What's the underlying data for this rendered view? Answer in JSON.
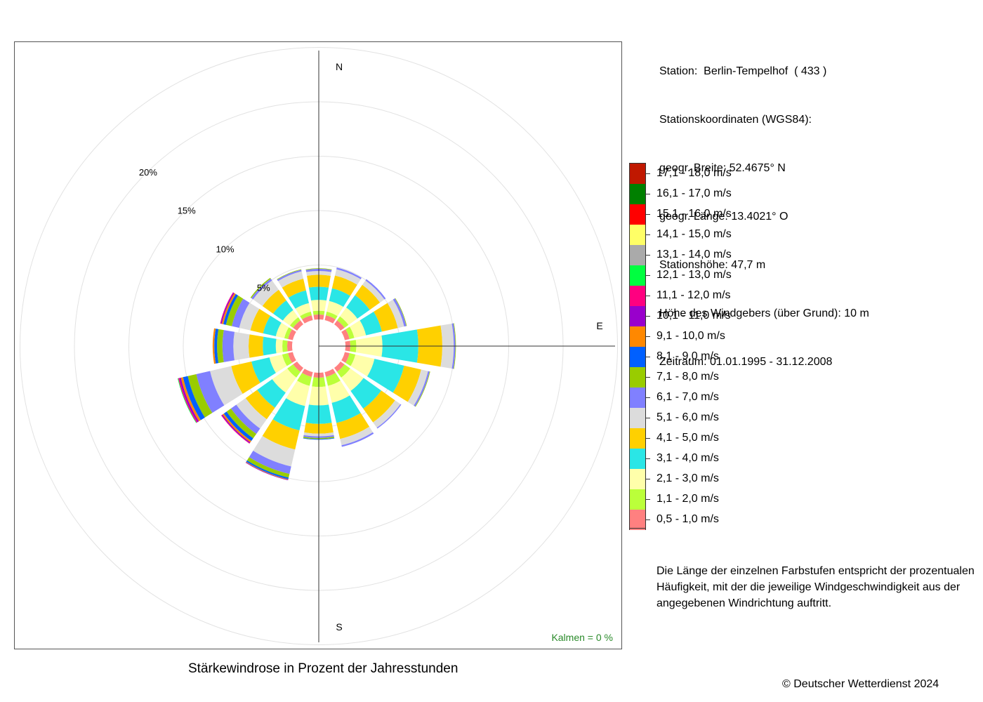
{
  "station": {
    "line1": "Station:  Berlin-Tempelhof  ( 433 )",
    "line2": "Stationskoordinaten (WGS84):",
    "line3": "geogr. Breite: 52.4675° N",
    "line4": "geogr. Länge: 13.4021° O",
    "line5": "Stationshöhe: 47,7 m",
    "line6": "Höhe des Windgebers (über Grund): 10 m",
    "line7": "Zeitraum: 01.01.1995 - 31.12.2008"
  },
  "note": {
    "line1": "Die Länge der einzelnen Farbstufen entspricht der prozentualen",
    "line2": "Häufigkeit, mit der die jeweilige Windgeschwindigkeit aus der",
    "line3": "angegebenen Windrichtung auftritt."
  },
  "caption": "Stärkewindrose in Prozent der Jahresstunden",
  "copyright": "© Deutscher Wetterdienst  2024",
  "calm": "Kalmen  =  0 %",
  "chart_data": {
    "type": "wind-rose",
    "title": "Stärkewindrose in Prozent der Jahresstunden",
    "directions": [
      "N",
      "NNE",
      "NE",
      "ENE",
      "E",
      "ESE",
      "SE",
      "SSE",
      "S",
      "SSW",
      "SW",
      "WSW",
      "W",
      "WNW",
      "NW",
      "NNW"
    ],
    "direction_labels": [
      "N",
      "E",
      "S"
    ],
    "radial_unit": "%",
    "radial_ticks": [
      5,
      10,
      15,
      20
    ],
    "radial_tick_labels": [
      "5%",
      "10%",
      "15%",
      "20%"
    ],
    "radial_max": 25,
    "calm_percent": 0,
    "speed_classes": [
      {
        "label": "0,5 - 1,0 m/s",
        "color": "#ff8080"
      },
      {
        "label": "1,1 - 2,0 m/s",
        "color": "#bbff3a"
      },
      {
        "label": "2,1 - 3,0 m/s",
        "color": "#ffffaa"
      },
      {
        "label": "3,1 - 4,0 m/s",
        "color": "#2ae6e6"
      },
      {
        "label": "4,1 - 5,0 m/s",
        "color": "#ffd000"
      },
      {
        "label": "5,1 - 6,0 m/s",
        "color": "#dcdcdc"
      },
      {
        "label": "6,1 - 7,0 m/s",
        "color": "#8080ff"
      },
      {
        "label": "7,1 - 8,0 m/s",
        "color": "#99cc00"
      },
      {
        "label": "8,1 - 9,0 m/s",
        "color": "#0060ff"
      },
      {
        "label": "9,1 - 10,0 m/s",
        "color": "#ff8800"
      },
      {
        "label": "10,1 - 11,0 m/s",
        "color": "#9900cc"
      },
      {
        "label": "11,1 - 12,0 m/s",
        "color": "#ff0080"
      },
      {
        "label": "12,1 - 13,0 m/s",
        "color": "#00ff40"
      },
      {
        "label": "13,1 - 14,0 m/s",
        "color": "#aaaaaa"
      },
      {
        "label": "14,1 - 15,0 m/s",
        "color": "#ffff66"
      },
      {
        "label": "15,1 - 16,0 m/s",
        "color": "#ff0000"
      },
      {
        "label": "16,1 - 17,0 m/s",
        "color": "#008000"
      },
      {
        "label": "17,1 - 18,0 m/s",
        "color": "#c01800"
      }
    ],
    "cumulative_percent": [
      [
        0.45,
        0.8,
        1.8,
        3.0,
        4.1,
        4.45,
        4.65,
        4.7
      ],
      [
        0.45,
        0.8,
        1.8,
        3.0,
        4.2,
        4.8,
        4.95
      ],
      [
        0.45,
        0.9,
        1.9,
        3.3,
        4.45,
        4.95,
        5.1
      ],
      [
        0.45,
        0.9,
        2.0,
        3.5,
        5.0,
        5.6,
        5.8,
        5.85
      ],
      [
        0.45,
        1.0,
        3.4,
        6.7,
        8.9,
        9.95,
        10.1,
        10.15
      ],
      [
        0.45,
        1.0,
        2.8,
        5.6,
        7.2,
        7.85,
        8.0,
        8.05
      ],
      [
        0.45,
        1.1,
        2.6,
        4.6,
        6.15,
        6.75,
        6.85
      ],
      [
        0.45,
        1.3,
        2.9,
        4.8,
        6.3,
        6.9,
        7.05
      ],
      [
        0.45,
        1.3,
        3.0,
        4.7,
        5.6,
        5.85,
        6.0,
        6.1,
        6.15
      ],
      [
        0.45,
        1.3,
        3.2,
        5.5,
        7.3,
        8.9,
        9.6,
        9.95,
        10.1,
        10.15,
        10.2
      ],
      [
        0.45,
        1.1,
        2.8,
        4.5,
        5.8,
        6.85,
        7.45,
        7.95,
        8.25,
        8.4,
        8.5,
        8.55
      ],
      [
        0.45,
        1.0,
        2.2,
        3.9,
        5.8,
        7.8,
        9.1,
        9.9,
        10.35,
        10.55,
        10.7,
        10.8,
        10.85
      ],
      [
        0.45,
        0.9,
        1.5,
        2.7,
        4.0,
        5.4,
        6.4,
        6.9,
        7.15,
        7.3
      ],
      [
        0.45,
        0.8,
        1.6,
        2.8,
        4.0,
        5.05,
        5.75,
        6.3,
        6.55,
        6.7,
        6.8,
        6.85
      ],
      [
        0.45,
        0.8,
        1.6,
        2.7,
        3.9,
        4.95,
        5.15,
        5.25
      ],
      [
        0.45,
        0.8,
        1.6,
        2.8,
        3.9,
        4.6,
        4.75,
        4.8
      ]
    ]
  }
}
